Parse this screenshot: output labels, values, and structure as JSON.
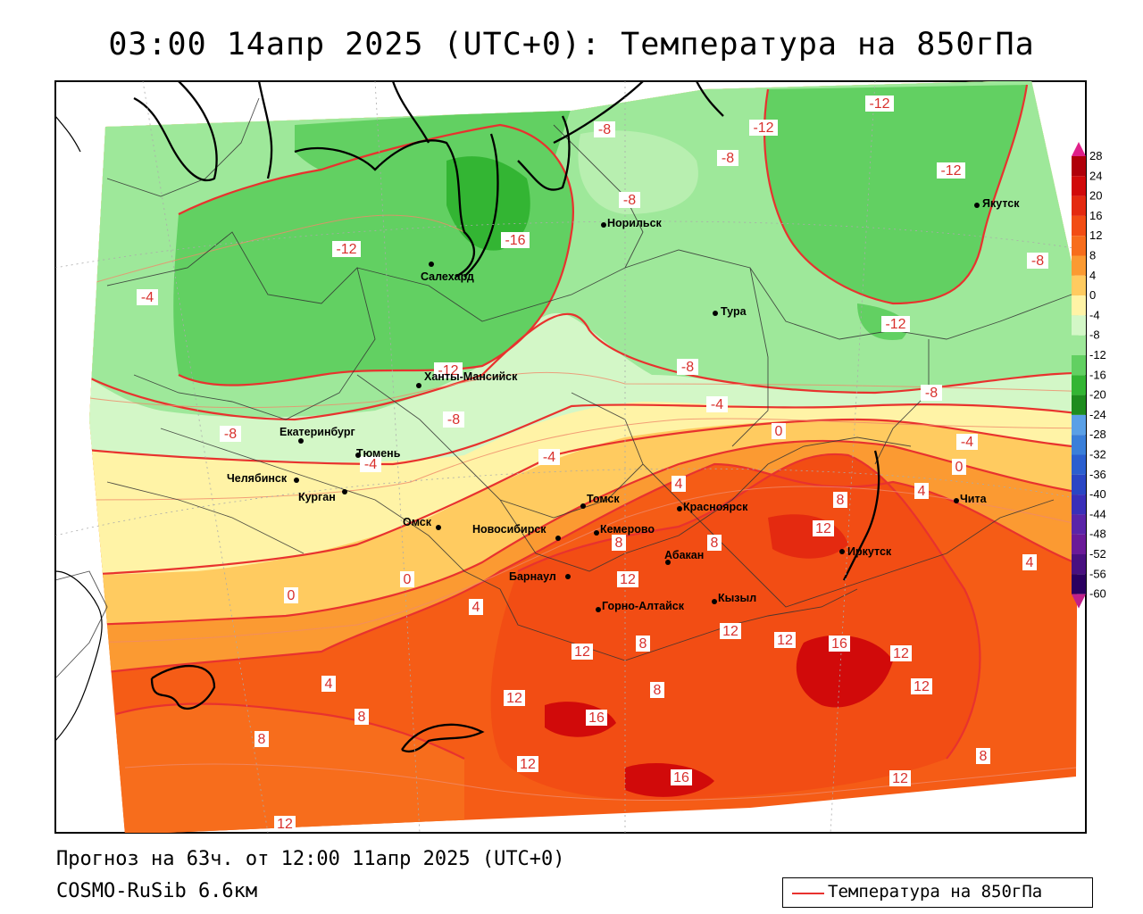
{
  "title": "03:00 14апр 2025 (UTC+0): Температура на 850гПа",
  "forecast_text": "Прогноз на 63ч. от 12:00 11апр 2025 (UTC+0)",
  "model_text": "COSMO-RuSib 6.6км",
  "legend_label": "Температура на 850гПа",
  "colorbar": {
    "ticks": [
      "28",
      "24",
      "20",
      "16",
      "12",
      "8",
      "4",
      "0",
      "-4",
      "-8",
      "-12",
      "-16",
      "-20",
      "-24",
      "-28",
      "-32",
      "-36",
      "-40",
      "-44",
      "-48",
      "-52",
      "-56",
      "-60"
    ],
    "colors": [
      "#b0000a",
      "#d10a0a",
      "#e42a10",
      "#f24d14",
      "#f76d1c",
      "#fb9a32",
      "#ffcb60",
      "#fff3a6",
      "#d3f7c7",
      "#9ee89a",
      "#62d062",
      "#33b533",
      "#1e8c1e",
      "#5aa0e6",
      "#3a7fd9",
      "#2b5fcf",
      "#2a46c4",
      "#3a2fb8",
      "#5a24a8",
      "#6a1a98",
      "#481080",
      "#2a0060"
    ]
  },
  "cities": [
    {
      "name": "Норильск"
    },
    {
      "name": "Салехард"
    },
    {
      "name": "Тура"
    },
    {
      "name": "Якутск"
    },
    {
      "name": "Ханты-Мансийск"
    },
    {
      "name": "Екатеринбург"
    },
    {
      "name": "Тюмень"
    },
    {
      "name": "Челябинск"
    },
    {
      "name": "Курган"
    },
    {
      "name": "Омск"
    },
    {
      "name": "Новосибирск"
    },
    {
      "name": "Томск"
    },
    {
      "name": "Кемерово"
    },
    {
      "name": "Красноярск"
    },
    {
      "name": "Барнаул"
    },
    {
      "name": "Абакан"
    },
    {
      "name": "Горно-Алтайск"
    },
    {
      "name": "Кызыл"
    },
    {
      "name": "Иркутск"
    },
    {
      "name": "Чита"
    }
  ],
  "contour_labels": [
    "-8",
    "-12",
    "-8",
    "-12",
    "-8",
    "-12",
    "-12",
    "-16",
    "-8",
    "-4",
    "-12",
    "-12",
    "-8",
    "-8",
    "-8",
    "-4",
    "-4",
    "-8",
    "-4",
    "0",
    "-4",
    "0",
    "4",
    "4",
    "8",
    "12",
    "8",
    "12",
    "8",
    "4",
    "0",
    "0",
    "4",
    "4",
    "8",
    "8",
    "12",
    "12",
    "12",
    "12",
    "16",
    "12",
    "12",
    "8",
    "16",
    "12",
    "12",
    "8",
    "12",
    "16",
    "8"
  ]
}
